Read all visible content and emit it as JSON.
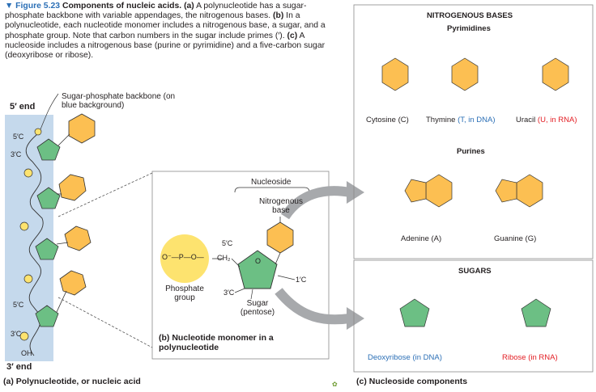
{
  "caption": {
    "figure_label": "▼ Figure 5.23",
    "title": "Components of nucleic acids.",
    "part_a": "(a)",
    "text_a": " A polynucleotide has a sugar-phosphate backbone with variable appendages, the nitrogenous bases. ",
    "part_b": "(b)",
    "text_b": " In a polynucleotide, each nucleotide monomer includes a nitrogenous base, a sugar, and a phosphate group. Note that carbon numbers in the sugar include primes (′). ",
    "part_c": "(c)",
    "text_c": " A nucleoside includes a nitrogenous base (purine or pyrimidine) and a five-carbon sugar (deoxyribose or ribose)."
  },
  "panel_a": {
    "five_end": "5′ end",
    "three_end": "3′ end",
    "backbone_label": "Sugar-phosphate backbone (on blue background)",
    "five_c_top": "5′C",
    "three_c_top": "3′C",
    "five_c_bottom": "5′C",
    "three_c_bottom": "3′C",
    "oh": "OH",
    "title": "(a) Polynucleotide, or nucleic acid"
  },
  "panel_b": {
    "nucleoside": "Nucleoside",
    "nitrogenous_base": "Nitrogenous base",
    "five_c": "5′C",
    "ch2": "CH₂",
    "o": "O",
    "one_c": "1′C",
    "three_c": "3′C",
    "phosphate_group": "Phosphate group",
    "sugar": "Sugar (pentose)",
    "phosphate_formula": "O⁻—P—O—",
    "title": "(b) Nucleotide monomer in a polynucleotide"
  },
  "panel_c": {
    "nitrogenous_bases": "NITROGENOUS BASES",
    "pyrimidines": "Pyrimidines",
    "cytosine": "Cytosine (C)",
    "thymine": "Thymine",
    "thymine_note": "(T, in DNA)",
    "uracil": "Uracil",
    "uracil_note": "(U, in RNA)",
    "purines": "Purines",
    "adenine": "Adenine (A)",
    "guanine": "Guanine (G)",
    "sugars": "SUGARS",
    "deoxyribose": "Deoxyribose (in DNA)",
    "ribose": "Ribose (in RNA)",
    "title": "(c) Nucleoside components"
  },
  "colors": {
    "caption_blue": "#2b6fb6",
    "backbone_blue": "#c5d9ec",
    "sugar_green": "#6cbf84",
    "base_orange": "#fcbf52",
    "phosphate_yellow": "#fde36f",
    "dna_blue": "#2b6fb6",
    "rna_red": "#e31e24"
  }
}
